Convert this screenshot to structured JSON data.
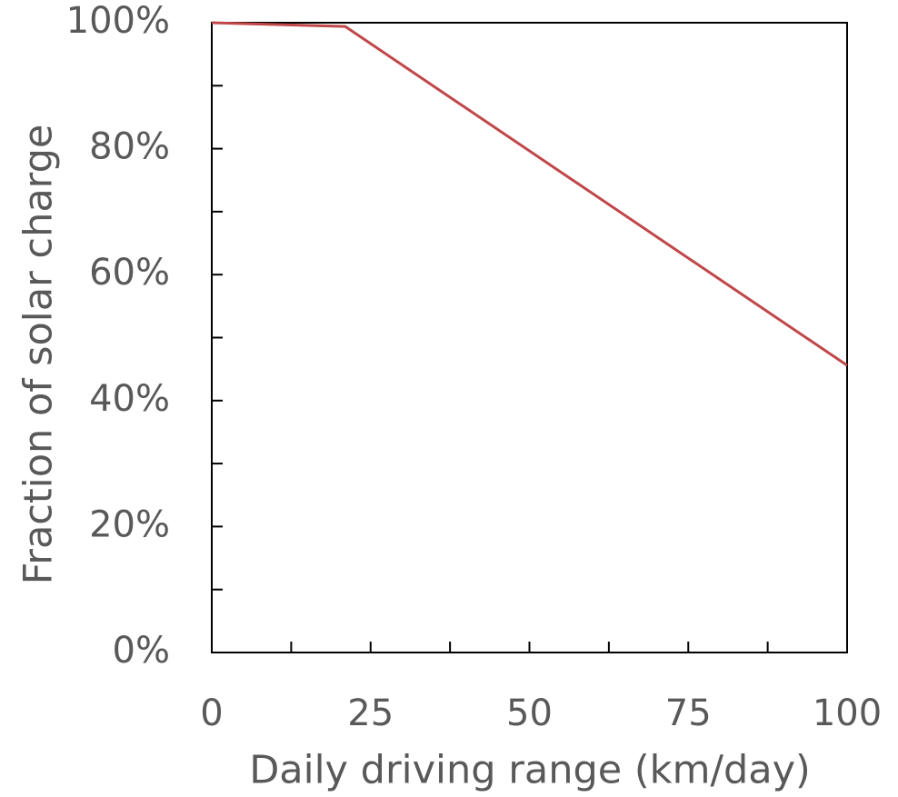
{
  "chart_data": {
    "type": "line",
    "x_label": "Daily driving range (km/day)",
    "y_label": "Fraction of solar charge",
    "series": [
      {
        "name": "Fraction of solar charge",
        "color": "#c0474a",
        "x": [
          0,
          21,
          100
        ],
        "values": [
          100,
          99.4,
          45.6
        ]
      }
    ],
    "xlim": [
      0,
      100
    ],
    "xticks": [
      0,
      25,
      50,
      75,
      100
    ],
    "xticks_minor": [
      12.5,
      37.5,
      62.5,
      87.5
    ],
    "ylim": [
      0,
      100
    ],
    "yticks": [
      {
        "value": 0,
        "label": "0%"
      },
      {
        "value": 20,
        "label": "20%"
      },
      {
        "value": 40,
        "label": "40%"
      },
      {
        "value": 60,
        "label": "60%"
      },
      {
        "value": 80,
        "label": "80%"
      },
      {
        "value": 100,
        "label": "100%"
      }
    ],
    "yticks_minor": [
      10,
      30,
      50,
      70,
      90
    ],
    "grid": false
  }
}
